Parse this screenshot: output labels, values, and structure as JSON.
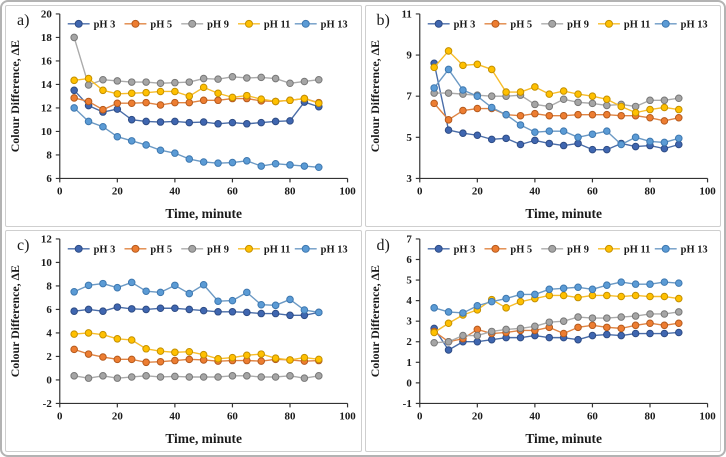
{
  "palette": {
    "pH 3": {
      "fill": "#3f66b0",
      "stroke": "#2e4c85",
      "line": "#4a6da8"
    },
    "pH 5": {
      "fill": "#ED7D31",
      "stroke": "#b55a1d",
      "line": "#e08443"
    },
    "pH 9": {
      "fill": "#A5A5A5",
      "stroke": "#787878",
      "line": "#ababab"
    },
    "pH 11": {
      "fill": "#FFC000",
      "stroke": "#c49000",
      "line": "#f7bd2a"
    },
    "pH 13": {
      "fill": "#5B9BD5",
      "stroke": "#3e78b0",
      "line": "#6b99c4"
    }
  },
  "axis_color": "#333333",
  "text_color": "#1a1a1a",
  "chart_data": [
    {
      "id": "a",
      "label": "a)",
      "type": "line",
      "xlabel": "Time, minute",
      "ylabel": "Colour Difference, ΔE",
      "xlim": [
        0,
        100
      ],
      "ylim": [
        6,
        20
      ],
      "xticks": [
        0,
        20,
        40,
        60,
        80,
        100
      ],
      "yticks": [
        6,
        8,
        10,
        12,
        14,
        16,
        18,
        20
      ],
      "legend_position": "top",
      "grid": false,
      "x": [
        5,
        10,
        15,
        20,
        25,
        30,
        35,
        40,
        45,
        50,
        55,
        60,
        65,
        70,
        75,
        80,
        85,
        90
      ],
      "series": [
        {
          "name": "pH 3",
          "values": [
            13.5,
            12.2,
            11.65,
            11.9,
            11.0,
            10.85,
            10.8,
            10.85,
            10.75,
            10.8,
            10.65,
            10.75,
            10.65,
            10.75,
            10.85,
            10.9,
            12.5,
            12.1
          ]
        },
        {
          "name": "pH 5",
          "values": [
            12.85,
            12.55,
            11.85,
            12.4,
            12.4,
            12.45,
            12.25,
            12.45,
            12.45,
            12.65,
            12.65,
            12.8,
            12.8,
            12.6,
            12.55,
            12.65,
            12.8,
            12.45
          ]
        },
        {
          "name": "pH 9",
          "values": [
            18.0,
            13.95,
            14.4,
            14.3,
            14.2,
            14.2,
            14.1,
            14.15,
            14.2,
            14.5,
            14.45,
            14.65,
            14.55,
            14.6,
            14.5,
            14.1,
            14.25,
            14.4
          ]
        },
        {
          "name": "pH 11",
          "values": [
            14.35,
            14.5,
            13.5,
            13.2,
            13.25,
            13.3,
            13.4,
            13.4,
            13.0,
            13.75,
            13.25,
            12.9,
            13.05,
            12.75,
            12.55,
            12.65,
            12.8,
            12.4
          ]
        },
        {
          "name": "pH 13",
          "values": [
            12.0,
            10.85,
            10.4,
            9.55,
            9.2,
            8.85,
            8.4,
            8.15,
            7.65,
            7.4,
            7.3,
            7.35,
            7.5,
            7.05,
            7.25,
            7.15,
            7.05,
            6.95
          ]
        }
      ]
    },
    {
      "id": "b",
      "label": "b)",
      "type": "line",
      "xlabel": "Time, minute",
      "ylabel": "Colour Difference, ΔE",
      "xlim": [
        0,
        100
      ],
      "ylim": [
        3,
        11
      ],
      "xticks": [
        0,
        20,
        40,
        60,
        80,
        100
      ],
      "yticks": [
        3,
        5,
        7,
        9,
        11
      ],
      "legend_position": "top",
      "grid": false,
      "x": [
        5,
        10,
        15,
        20,
        25,
        30,
        35,
        40,
        45,
        50,
        55,
        60,
        65,
        70,
        75,
        80,
        85,
        90
      ],
      "series": [
        {
          "name": "pH 3",
          "values": [
            8.6,
            5.35,
            5.2,
            5.1,
            4.9,
            4.95,
            4.65,
            4.85,
            4.7,
            4.6,
            4.7,
            4.4,
            4.4,
            4.7,
            4.55,
            4.6,
            4.45,
            4.65
          ]
        },
        {
          "name": "pH 5",
          "values": [
            6.65,
            5.85,
            6.3,
            6.4,
            6.4,
            6.1,
            6.05,
            6.15,
            6.05,
            6.05,
            6.1,
            6.1,
            6.1,
            6.05,
            6.05,
            5.95,
            5.8,
            5.95
          ]
        },
        {
          "name": "pH 9",
          "values": [
            7.15,
            7.15,
            7.1,
            7.05,
            7.0,
            7.0,
            7.05,
            6.6,
            6.5,
            6.85,
            6.7,
            6.65,
            6.55,
            6.6,
            6.5,
            6.8,
            6.8,
            6.9
          ]
        },
        {
          "name": "pH 11",
          "values": [
            8.4,
            9.2,
            8.5,
            8.55,
            8.3,
            7.2,
            7.2,
            7.45,
            7.1,
            7.25,
            7.1,
            7.0,
            6.85,
            6.5,
            6.2,
            6.35,
            6.45,
            6.35
          ]
        },
        {
          "name": "pH 13",
          "values": [
            7.4,
            8.3,
            7.3,
            7.0,
            6.45,
            6.1,
            5.6,
            5.25,
            5.3,
            5.3,
            5.0,
            5.15,
            5.3,
            4.65,
            5.0,
            4.8,
            4.75,
            4.95
          ]
        }
      ]
    },
    {
      "id": "c",
      "label": "c)",
      "type": "line",
      "xlabel": "Time, minute",
      "ylabel": "Colour Difference, ΔE",
      "xlim": [
        0,
        100
      ],
      "ylim": [
        -2,
        12
      ],
      "xticks": [
        0,
        20,
        40,
        60,
        80,
        100
      ],
      "yticks": [
        -2,
        0,
        2,
        4,
        6,
        8,
        10,
        12
      ],
      "legend_position": "top",
      "grid": false,
      "x": [
        5,
        10,
        15,
        20,
        25,
        30,
        35,
        40,
        45,
        50,
        55,
        60,
        65,
        70,
        75,
        80,
        85,
        90
      ],
      "series": [
        {
          "name": "pH 3",
          "values": [
            5.85,
            6.0,
            5.85,
            6.2,
            6.05,
            6.0,
            6.1,
            6.1,
            6.0,
            5.9,
            5.8,
            5.8,
            5.75,
            5.65,
            5.65,
            5.5,
            5.5,
            5.75
          ]
        },
        {
          "name": "pH 5",
          "values": [
            2.6,
            2.2,
            1.95,
            1.75,
            1.75,
            1.5,
            1.55,
            1.65,
            1.75,
            1.7,
            1.6,
            1.65,
            1.65,
            1.6,
            1.75,
            1.7,
            1.6,
            1.65
          ]
        },
        {
          "name": "pH 9",
          "values": [
            0.35,
            0.15,
            0.35,
            0.15,
            0.25,
            0.35,
            0.25,
            0.3,
            0.25,
            0.25,
            0.25,
            0.35,
            0.35,
            0.25,
            0.25,
            0.35,
            0.15,
            0.35
          ]
        },
        {
          "name": "pH 11",
          "values": [
            3.9,
            4.0,
            3.85,
            3.5,
            3.4,
            2.65,
            2.45,
            2.35,
            2.4,
            2.15,
            1.8,
            1.9,
            2.1,
            2.2,
            1.85,
            1.7,
            1.9,
            1.75
          ]
        },
        {
          "name": "pH 13",
          "values": [
            7.5,
            8.05,
            8.2,
            7.85,
            8.3,
            7.55,
            7.45,
            8.05,
            7.35,
            8.1,
            6.7,
            6.75,
            7.45,
            6.4,
            6.35,
            6.85,
            5.95,
            5.75
          ]
        }
      ]
    },
    {
      "id": "d",
      "label": "d)",
      "type": "line",
      "xlabel": "Time, minute",
      "ylabel": "Colour Difference, ΔE",
      "xlim": [
        0,
        100
      ],
      "ylim": [
        -1,
        7
      ],
      "xticks": [
        0,
        20,
        40,
        60,
        80,
        100
      ],
      "yticks": [
        -1,
        0,
        1,
        2,
        3,
        4,
        5,
        6,
        7
      ],
      "legend_position": "top",
      "grid": false,
      "x": [
        5,
        10,
        15,
        20,
        25,
        30,
        35,
        40,
        45,
        50,
        55,
        60,
        65,
        70,
        75,
        80,
        85,
        90
      ],
      "series": [
        {
          "name": "pH 3",
          "values": [
            2.65,
            1.6,
            2.0,
            2.0,
            2.1,
            2.2,
            2.2,
            2.3,
            2.2,
            2.2,
            2.1,
            2.3,
            2.35,
            2.3,
            2.4,
            2.4,
            2.4,
            2.45
          ]
        },
        {
          "name": "pH 5",
          "values": [
            2.5,
            2.0,
            2.15,
            2.6,
            2.4,
            2.45,
            2.55,
            2.55,
            2.7,
            2.4,
            2.7,
            2.8,
            2.7,
            2.65,
            2.8,
            2.9,
            2.8,
            2.9
          ]
        },
        {
          "name": "pH 9",
          "values": [
            1.95,
            2.0,
            2.3,
            2.3,
            2.5,
            2.6,
            2.65,
            2.75,
            2.95,
            3.0,
            3.2,
            3.15,
            3.15,
            3.2,
            3.25,
            3.35,
            3.35,
            3.45
          ]
        },
        {
          "name": "pH 11",
          "values": [
            2.45,
            2.9,
            3.3,
            3.55,
            4.05,
            3.65,
            3.95,
            4.1,
            4.25,
            4.25,
            4.15,
            4.25,
            4.25,
            4.2,
            4.25,
            4.2,
            4.2,
            4.1
          ]
        },
        {
          "name": "pH 13",
          "values": [
            3.65,
            3.45,
            3.4,
            3.75,
            3.95,
            4.1,
            4.3,
            4.3,
            4.55,
            4.6,
            4.65,
            4.55,
            4.75,
            4.9,
            4.8,
            4.8,
            4.9,
            4.85
          ]
        }
      ]
    }
  ]
}
